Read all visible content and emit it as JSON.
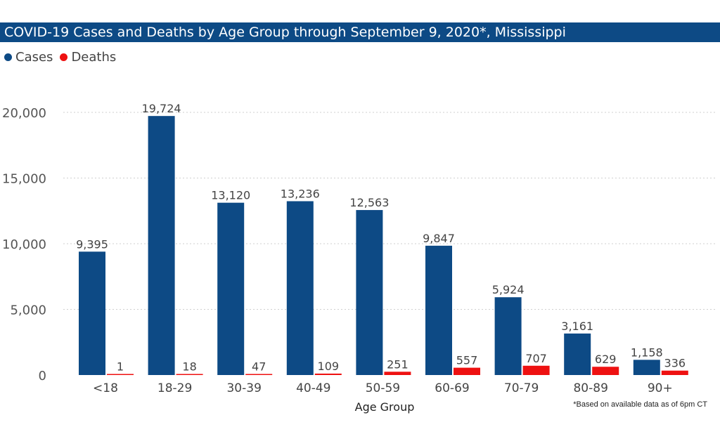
{
  "chart_data": {
    "type": "bar",
    "title": "COVID-19 Cases and Deaths by Age Group through September 9, 2020*, Mississippi",
    "xlabel": "Age Group",
    "ylabel": "",
    "categories": [
      "<18",
      "18-29",
      "30-39",
      "40-49",
      "50-59",
      "60-69",
      "70-79",
      "80-89",
      "90+"
    ],
    "series": [
      {
        "name": "Cases",
        "color": "#0d4a85",
        "values": [
          9395,
          19724,
          13120,
          13236,
          12563,
          9847,
          5924,
          3161,
          1158
        ],
        "labels": [
          "9,395",
          "19,724",
          "13,120",
          "13,236",
          "12,563",
          "9,847",
          "5,924",
          "3,161",
          "1,158"
        ]
      },
      {
        "name": "Deaths",
        "color": "#ee1111",
        "values": [
          1,
          18,
          47,
          109,
          251,
          557,
          707,
          629,
          336
        ],
        "labels": [
          "1",
          "18",
          "47",
          "109",
          "251",
          "557",
          "707",
          "629",
          "336"
        ]
      }
    ],
    "ylim": [
      0,
      20000
    ],
    "yticks": [
      0,
      5000,
      10000,
      15000,
      20000
    ],
    "ytick_labels": [
      "0",
      "5,000",
      "10,000",
      "15,000",
      "20,000"
    ],
    "grid": true,
    "legend_position": "top-left"
  },
  "footnote": "*Based on available data as of 6pm CT"
}
